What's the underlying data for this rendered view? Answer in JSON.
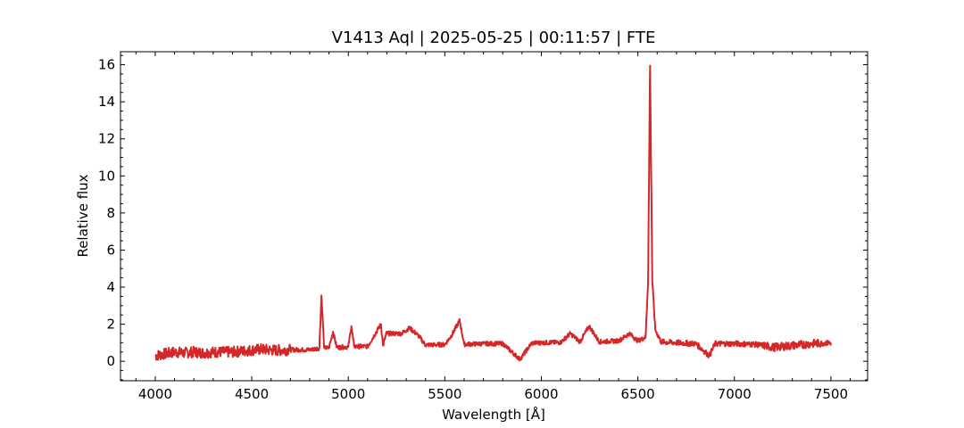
{
  "chart_data": {
    "type": "line",
    "title": "V1413 Aql | 2025-05-25 | 00:11:57 | FTE",
    "xlabel": "Wavelength [Å]",
    "ylabel": "Relative flux",
    "xlim": [
      3820,
      7690
    ],
    "ylim": [
      -1.05,
      16.7
    ],
    "xticks": [
      4000,
      4500,
      5000,
      5500,
      6000,
      6500,
      7000,
      7500
    ],
    "yticks": [
      0,
      2,
      4,
      6,
      8,
      10,
      12,
      14,
      16
    ],
    "grid": false,
    "legend": "none",
    "series": [
      {
        "color": "#d62728",
        "x": [
          4000,
          4050,
          4100,
          4150,
          4200,
          4250,
          4300,
          4350,
          4400,
          4450,
          4500,
          4550,
          4600,
          4650,
          4700,
          4750,
          4800,
          4850,
          4861,
          4875,
          4900,
          4921,
          4940,
          5000,
          5016,
          5030,
          5100,
          5169,
          5180,
          5197,
          5234,
          5276,
          5317,
          5362,
          5400,
          5500,
          5535,
          5577,
          5600,
          5700,
          5800,
          5890,
          5896,
          5950,
          6000,
          6100,
          6150,
          6200,
          6248,
          6300,
          6350,
          6400,
          6456,
          6500,
          6540,
          6553,
          6563,
          6575,
          6590,
          6620,
          6700,
          6800,
          6870,
          6900,
          7000,
          7100,
          7150,
          7200,
          7300,
          7400,
          7500
        ],
        "y": [
          0.3,
          0.4,
          0.5,
          0.45,
          0.5,
          0.45,
          0.5,
          0.5,
          0.5,
          0.55,
          0.6,
          0.65,
          0.6,
          0.6,
          0.62,
          0.62,
          0.62,
          0.7,
          3.55,
          0.72,
          0.72,
          1.6,
          0.75,
          0.78,
          1.9,
          0.8,
          0.8,
          2.0,
          0.85,
          1.5,
          1.5,
          1.5,
          1.8,
          1.4,
          0.88,
          0.9,
          1.4,
          2.2,
          0.92,
          0.95,
          0.95,
          0.1,
          0.2,
          0.98,
          1.0,
          1.02,
          1.5,
          1.05,
          1.9,
          1.05,
          1.08,
          1.1,
          1.5,
          1.1,
          1.3,
          4.3,
          15.95,
          4.3,
          1.7,
          1.05,
          1.0,
          0.95,
          0.3,
          0.95,
          0.95,
          0.92,
          0.85,
          0.75,
          0.85,
          0.95,
          1.0
        ]
      }
    ]
  }
}
